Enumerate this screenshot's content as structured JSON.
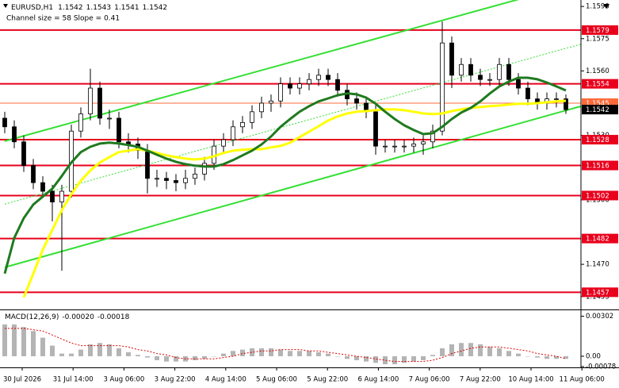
{
  "chart_data": {
    "type": "candlestick",
    "title": "EURUSD,H1",
    "quote": {
      "open": 1.1542,
      "high": 1.1543,
      "low": 1.1541,
      "close": 1.1542
    },
    "subtitle": "Channel size = 58 Slope = 0.41",
    "xticks": [
      "30 Jul 2026",
      "31 Jul 14:00",
      "3 Aug 06:00",
      "3 Aug 22:00",
      "4 Aug 14:00",
      "5 Aug 06:00",
      "5 Aug 22:00",
      "6 Aug 14:00",
      "7 Aug 06:00",
      "7 Aug 22:00",
      "10 Aug 14:00",
      "11 Aug 06:00"
    ],
    "open": [
      1.1538,
      1.1534,
      1.1527,
      1.1516,
      1.1508,
      1.1504,
      1.1499,
      1.1504,
      1.1532,
      1.154,
      1.1552,
      1.1538,
      1.1538,
      1.1527,
      1.1526,
      1.1523,
      1.151,
      1.151,
      1.1509,
      1.1508,
      1.151,
      1.1512,
      1.1517,
      1.1525,
      1.1528,
      1.1534,
      1.1536,
      1.1541,
      1.1545,
      1.1546,
      1.1554,
      1.1552,
      1.1554,
      1.1556,
      1.1558,
      1.1556,
      1.1551,
      1.1547,
      1.1545,
      1.1541,
      1.1525,
      1.1525,
      1.1525,
      1.1525,
      1.1526,
      1.1527,
      1.1532,
      1.1573,
      1.1558,
      1.1563,
      1.1558,
      1.1556,
      1.1556,
      1.1563,
      1.1556,
      1.1552,
      1.1547,
      1.1545,
      1.1547,
      1.1547
    ],
    "high": [
      1.1541,
      1.1537,
      1.153,
      1.1519,
      1.1511,
      1.1507,
      1.1507,
      1.1535,
      1.1543,
      1.1561,
      1.1555,
      1.1542,
      1.1541,
      1.1531,
      1.1529,
      1.1526,
      1.1514,
      1.1513,
      1.1512,
      1.1514,
      1.1515,
      1.152,
      1.1528,
      1.1531,
      1.1537,
      1.1539,
      1.1544,
      1.1548,
      1.1549,
      1.1557,
      1.1557,
      1.1557,
      1.1559,
      1.1561,
      1.1561,
      1.1559,
      1.1554,
      1.155,
      1.1548,
      1.1544,
      1.1528,
      1.1528,
      1.1528,
      1.1529,
      1.153,
      1.1535,
      1.1583,
      1.1576,
      1.1566,
      1.1566,
      1.1561,
      1.1559,
      1.1566,
      1.1566,
      1.1559,
      1.1555,
      1.155,
      1.155,
      1.155,
      1.1549
    ],
    "low": [
      1.1531,
      1.1524,
      1.1513,
      1.1505,
      1.1501,
      1.149,
      1.1467,
      1.1501,
      1.1529,
      1.1537,
      1.1535,
      1.1533,
      1.1524,
      1.1522,
      1.1519,
      1.1503,
      1.1506,
      1.1505,
      1.1504,
      1.1505,
      1.1507,
      1.1509,
      1.1514,
      1.1522,
      1.1525,
      1.1531,
      1.1533,
      1.1538,
      1.1541,
      1.1543,
      1.1549,
      1.1549,
      1.1551,
      1.1553,
      1.1553,
      1.1548,
      1.1544,
      1.1542,
      1.1538,
      1.1521,
      1.1522,
      1.1522,
      1.1522,
      1.1522,
      1.1521,
      1.1524,
      1.153,
      1.1552,
      1.1555,
      1.1555,
      1.1553,
      1.1553,
      1.1553,
      1.1553,
      1.1549,
      1.1544,
      1.1542,
      1.1542,
      1.1543,
      1.154
    ],
    "close": [
      1.1534,
      1.1527,
      1.1516,
      1.1508,
      1.1504,
      1.1499,
      1.1504,
      1.1532,
      1.154,
      1.1552,
      1.1538,
      1.1538,
      1.1527,
      1.1526,
      1.1523,
      1.151,
      1.151,
      1.1509,
      1.1508,
      1.151,
      1.1512,
      1.1517,
      1.1525,
      1.1528,
      1.1534,
      1.1536,
      1.1541,
      1.1545,
      1.1546,
      1.1554,
      1.1552,
      1.1554,
      1.1556,
      1.1558,
      1.1556,
      1.1551,
      1.1547,
      1.1545,
      1.1541,
      1.1525,
      1.1525,
      1.1525,
      1.1525,
      1.1526,
      1.1527,
      1.1532,
      1.1573,
      1.1558,
      1.1563,
      1.1558,
      1.1556,
      1.1556,
      1.1563,
      1.1556,
      1.1552,
      1.1547,
      1.1545,
      1.1547,
      1.1547,
      1.1542
    ],
    "ylim": [
      1.1449,
      1.1593
    ],
    "yticks": [
      1.1455,
      {
        "value": 1.147,
        "label": "1.1470"
      },
      {
        "value": 1.15,
        "label": "1.1500"
      },
      {
        "value": 1.153,
        "label": "1.1530"
      },
      {
        "value": 1.156,
        "label": "1.1560"
      },
      1.1575,
      {
        "value": 1.159,
        "label": "1.1590"
      }
    ],
    "moving_averages": [
      {
        "color": "#ffff00",
        "values": [
          null,
          null,
          1.14546,
          1.14657,
          1.14768,
          1.1486,
          1.14952,
          1.15026,
          1.15089,
          1.15137,
          1.15174,
          1.15199,
          1.15222,
          1.15229,
          1.15236,
          1.15229,
          1.15218,
          1.15207,
          1.15199,
          1.15192,
          1.15188,
          1.15192,
          1.15203,
          1.15218,
          1.15229,
          1.15233,
          1.15236,
          1.15236,
          1.15244,
          1.15251,
          1.15266,
          1.15292,
          1.15317,
          1.15343,
          1.15369,
          1.15388,
          1.15402,
          1.1541,
          1.15413,
          1.15417,
          1.15421,
          1.15421,
          1.15417,
          1.1541,
          1.15402,
          1.15399,
          1.15402,
          1.15413,
          1.15421,
          1.15428,
          1.15432,
          1.15436,
          1.15439,
          1.15443,
          1.15447,
          1.15447,
          1.1545,
          1.15454,
          1.15458,
          1.15461
        ]
      },
      {
        "color": "#1f7a1f",
        "values": [
          1.14657,
          1.14823,
          1.14915,
          1.14978,
          1.15015,
          1.15052,
          1.15111,
          1.15174,
          1.15222,
          1.15247,
          1.15262,
          1.15266,
          1.15262,
          1.15255,
          1.15247,
          1.15229,
          1.1521,
          1.15192,
          1.15177,
          1.15166,
          1.15159,
          1.15155,
          1.15155,
          1.15166,
          1.15185,
          1.15207,
          1.15229,
          1.15258,
          1.15295,
          1.1534,
          1.15376,
          1.1541,
          1.15436,
          1.15458,
          1.15472,
          1.15487,
          1.15495,
          1.15491,
          1.15476,
          1.15447,
          1.1541,
          1.15376,
          1.15347,
          1.15325,
          1.15306,
          1.1531,
          1.1534,
          1.15376,
          1.15406,
          1.15428,
          1.15458,
          1.15495,
          1.15528,
          1.1555,
          1.15568,
          1.15568,
          1.15561,
          1.15546,
          1.15528,
          1.15509
        ]
      }
    ],
    "channel": {
      "color": "#33e033",
      "upper": [
        1.15273,
        1.15994
      ],
      "lower": [
        1.14686,
        1.15416
      ],
      "mid": [
        1.1498,
        1.15705
      ]
    },
    "levels": [
      1.1579,
      1.1554,
      1.1528,
      1.1516,
      1.1502,
      1.1482,
      1.1457
    ],
    "level_color": "#e8001c",
    "ask": 1.1545,
    "ask_color": "#ff6a3a",
    "last_price": 1.1542,
    "macd": {
      "title": "MACD(12,26,9)",
      "readout": [
        {
          "value": -0.0002,
          "label": "-0.00020"
        },
        -0.00018
      ],
      "ylim": [
        -0.00084,
        0.00347
      ],
      "yticks": [
        -0.00078,
        {
          "value": 0,
          "label": "0.00"
        },
        0.00302
      ],
      "histogram_color": "#b4b4b4",
      "signal_color": "#e00000",
      "histogram": [
        0.0024,
        0.0024,
        0.0022,
        0.0019,
        0.0014,
        0.0008,
        0.0002,
        0.0002,
        0.0005,
        0.0009,
        0.001,
        0.0009,
        0.0006,
        0.0003,
        0.0001,
        -0.0001,
        -0.0003,
        -0.0004,
        -0.0004,
        -0.0004,
        -0.0003,
        -0.0002,
        0,
        0.0002,
        0.0004,
        0.0005,
        0.0006,
        0.0006,
        0.0006,
        0.0005,
        0.0004,
        0.0004,
        0.0004,
        0.0003,
        0.0002,
        0,
        -0.0002,
        -0.0003,
        -0.0004,
        -0.0005,
        -0.0006,
        -0.0006,
        -0.0005,
        -0.0004,
        -0.0003,
        0.0001,
        0.0006,
        0.0009,
        0.001,
        0.001,
        0.0009,
        0.0007,
        0.0006,
        0.0004,
        0.0002,
        0,
        -0.0001,
        -0.0002,
        -0.0002,
        -0.0002
      ],
      "signal": [
        0.0021,
        0.0021,
        0.0021,
        0.002,
        0.0019,
        0.0016,
        0.0013,
        0.001,
        0.0008,
        0.0008,
        0.0008,
        0.0008,
        0.0008,
        0.0007,
        0.0005,
        0.0004,
        0.0002,
        0.0001,
        -0.0001,
        -0.0002,
        -0.0002,
        -0.0002,
        -0.0002,
        -0.0001,
        0,
        0.0002,
        0.0003,
        0.0004,
        0.0004,
        0.0005,
        0.0005,
        0.0005,
        0.0004,
        0.0004,
        0.0003,
        0.0002,
        0.0001,
        0,
        -0.0001,
        -0.0002,
        -0.0003,
        -0.0004,
        -0.0004,
        -0.0004,
        -0.0004,
        -0.0003,
        -0.0001,
        0.0002,
        0.0004,
        0.0006,
        0.0007,
        0.0007,
        0.0007,
        0.0006,
        0.0005,
        0.0004,
        0.0002,
        0.0001,
        0,
        -0.00018
      ]
    }
  }
}
